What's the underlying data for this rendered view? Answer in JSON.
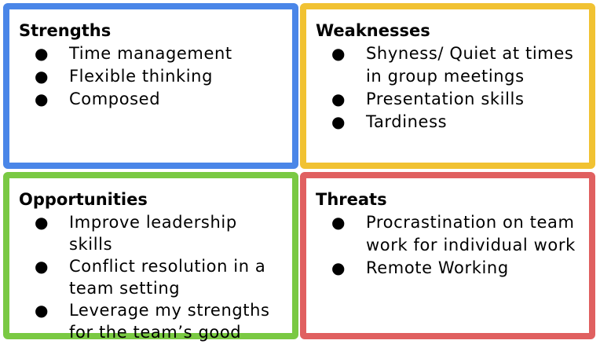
{
  "quadrants": {
    "strengths": {
      "title": "Strengths",
      "color": "#4a86e8",
      "items": [
        "Time management",
        "Flexible thinking",
        "Composed"
      ]
    },
    "weaknesses": {
      "title": "Weaknesses",
      "color": "#f1c232",
      "items": [
        "Shyness/ Quiet at times in group meetings",
        "Presentation skills",
        "Tardiness"
      ]
    },
    "opportunities": {
      "title": "Opportunities",
      "color": "#7ac943",
      "items": [
        "Improve leadership skills",
        "Conflict resolution in a team setting",
        "Leverage my strengths for the team’s good"
      ]
    },
    "threats": {
      "title": "Threats",
      "color": "#e06060",
      "items": [
        "Procrastination on team work for individual work",
        "Remote Working"
      ]
    }
  },
  "bullet_glyph": "●"
}
